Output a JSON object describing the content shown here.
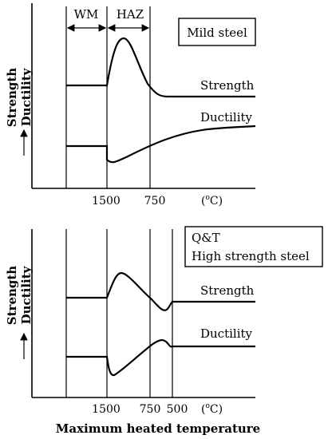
{
  "top_panel": {
    "title": "Mild steel",
    "zone_wm": "WM",
    "zone_haz": "HAZ",
    "y_label_1": "Strength",
    "y_label_2": "Ductility",
    "curve_strength": "Strength",
    "curve_ductility": "Ductility",
    "tick_1": "1500",
    "tick_2": "750",
    "unit_prefix": "(",
    "unit_sup": "o",
    "unit_suffix": "C)"
  },
  "bottom_panel": {
    "title_line1": "Q&T",
    "title_line2": "High strength steel",
    "y_label_1": "Strength",
    "y_label_2": "Ductility",
    "curve_strength": "Strength",
    "curve_ductility": "Ductility",
    "tick_1": "1500",
    "tick_2": "750",
    "tick_3": "500",
    "unit_prefix": "(",
    "unit_sup": "o",
    "unit_suffix": "C)",
    "x_axis_title": "Maximum heated temperature"
  }
}
